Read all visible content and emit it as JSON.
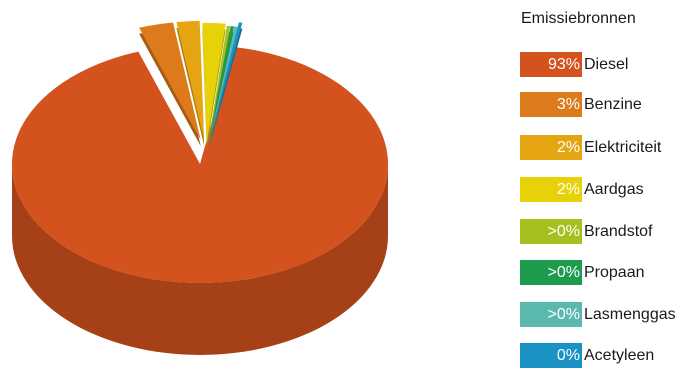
{
  "chart_data": {
    "type": "pie",
    "title": "",
    "legend_title": "Emissiebronnen",
    "legend_position": "right",
    "three_d": true,
    "slices": [
      {
        "label": "Diesel",
        "value": 93,
        "display": "93%",
        "color": "#d4521e"
      },
      {
        "label": "Benzine",
        "value": 3,
        "display": "3%",
        "color": "#dd7a1c"
      },
      {
        "label": "Elektriciteit",
        "value": 2,
        "display": "2%",
        "color": "#e5a513"
      },
      {
        "label": "Aardgas",
        "value": 2,
        "display": "2%",
        "color": "#e7d20a"
      },
      {
        "label": "Brandstof",
        "value": 0.3,
        "display": ">0%",
        "color": "#a6c01f"
      },
      {
        "label": "Propaan",
        "value": 0.3,
        "display": ">0%",
        "color": "#1c9c4c"
      },
      {
        "label": "Lasmenggas",
        "value": 0.3,
        "display": ">0%",
        "color": "#5bb8ad"
      },
      {
        "label": "Acetyleen",
        "value": 0.3,
        "display": "0%",
        "color": "#1a93c4"
      }
    ]
  }
}
